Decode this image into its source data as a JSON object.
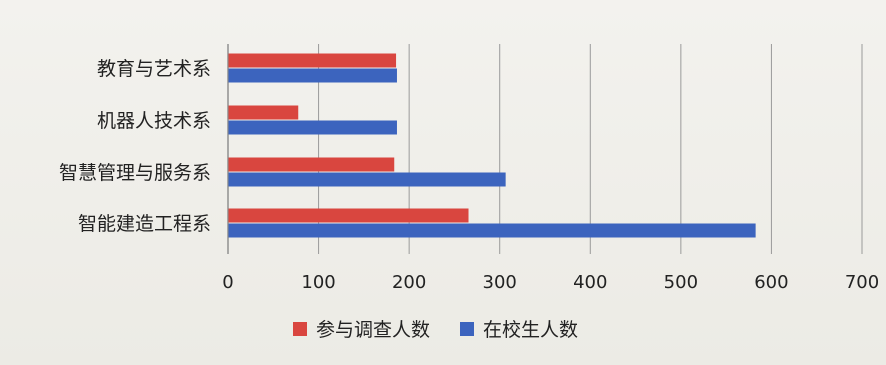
{
  "chart_data": {
    "type": "bar",
    "orientation": "horizontal",
    "categories": [
      "教育与艺术系",
      "机器人技术系",
      "智慧管理与服务系",
      "智能建造工程系"
    ],
    "series": [
      {
        "name": "参与调查人数",
        "color": "#d9463f",
        "values": [
          185,
          77,
          183,
          265
        ]
      },
      {
        "name": "在校生人数",
        "color": "#3c64be",
        "values": [
          186,
          186,
          306,
          582
        ]
      }
    ],
    "xlim": [
      0,
      700
    ],
    "x_ticks": [
      "0",
      "100",
      "200",
      "300",
      "400",
      "500",
      "600",
      "700"
    ],
    "grid": "vertical",
    "legend_position": "bottom",
    "title": "",
    "xlabel": "",
    "ylabel": ""
  }
}
